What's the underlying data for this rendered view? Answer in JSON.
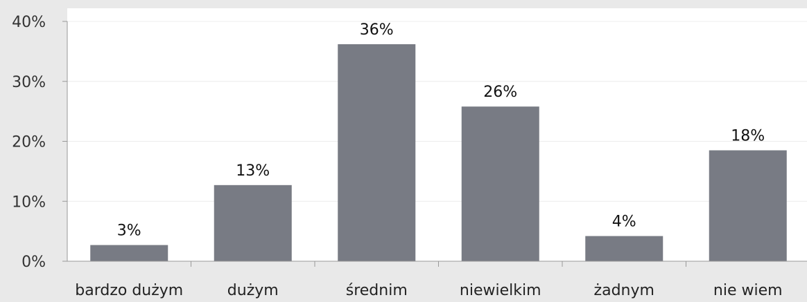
{
  "chart_data": {
    "type": "bar",
    "categories": [
      "bardzo dużym",
      "dużym",
      "średnim",
      "niewielkim",
      "żadnym",
      "nie wiem"
    ],
    "values": [
      2.7,
      12.7,
      36.2,
      25.8,
      4.2,
      18.5
    ],
    "data_labels": [
      "3%",
      "13%",
      "36%",
      "26%",
      "4%",
      "18%"
    ],
    "ylim": [
      0,
      40
    ],
    "y_ticks": [
      "0%",
      "10%",
      "20%",
      "30%",
      "40%"
    ],
    "grid": true,
    "bar_color": "#787b84",
    "plot_background": "#ffffff",
    "page_background": "#e9e9e9"
  }
}
